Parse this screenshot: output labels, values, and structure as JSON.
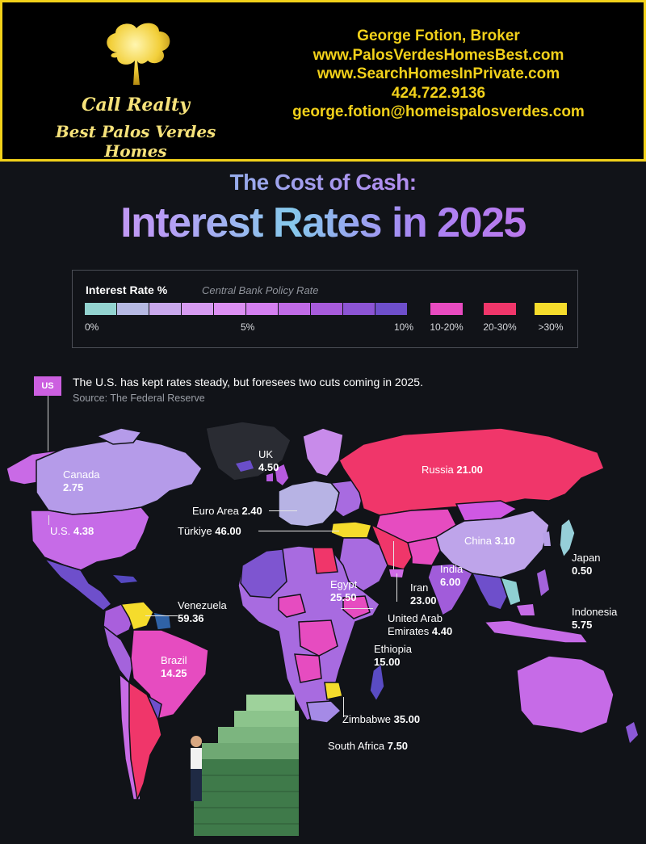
{
  "banner": {
    "brand_line1": "Call Realty",
    "brand_line2": "Best Palos Verdes Homes",
    "contact": [
      "George Fotion, Broker",
      "www.PalosVerdesHomesBest.com",
      "www.SearchHomesInPrivate.com",
      "424.722.9136",
      "george.fotion@homeispalosverdes.com"
    ]
  },
  "titles": {
    "subtitle": "The Cost of Cash:",
    "title": "Interest Rates in 2025"
  },
  "legend": {
    "title": "Interest Rate %",
    "subtitle": "Central Bank Policy Rate",
    "ticks": [
      "0%",
      "5%",
      "10%"
    ],
    "buckets": [
      {
        "label": "10-20%",
        "color": "#e84bc0"
      },
      {
        "label": "20-30%",
        "color": "#f0366a"
      },
      {
        "label": ">30%",
        "color": "#f5dc2c"
      }
    ],
    "scale_colors": [
      "#93d3d0",
      "#b6b9e3",
      "#c9a8ec",
      "#d69af0",
      "#dc8ff2",
      "#d47ff0",
      "#c06be6",
      "#a75bdb",
      "#8c54d4",
      "#6e4fcb",
      "#2f62a6"
    ]
  },
  "note": {
    "tag": "US",
    "text": "The U.S. has kept rates steady, but foresees two cuts coming in 2025.",
    "source": "Source: The Federal Reserve"
  },
  "countries": [
    {
      "name": "Canada",
      "rate": "2.75"
    },
    {
      "name": "U.S.",
      "rate": "4.38"
    },
    {
      "name": "UK",
      "rate": "4.50"
    },
    {
      "name": "Euro Area",
      "rate": "2.40"
    },
    {
      "name": "Türkiye",
      "rate": "46.00"
    },
    {
      "name": "Russia",
      "rate": "21.00"
    },
    {
      "name": "China",
      "rate": "3.10"
    },
    {
      "name": "Japan",
      "rate": "0.50"
    },
    {
      "name": "Egypt",
      "rate": "25.50"
    },
    {
      "name": "Iran",
      "rate": "23.00"
    },
    {
      "name": "India",
      "rate": "6.00"
    },
    {
      "name": "United Arab",
      "name2": "Emirates",
      "rate": "4.40"
    },
    {
      "name": "Indonesia",
      "rate": "5.75"
    },
    {
      "name": "Venezuela",
      "rate": "59.36"
    },
    {
      "name": "Brazil",
      "rate": "14.25"
    },
    {
      "name": "Ethiopia",
      "rate": "15.00"
    },
    {
      "name": "Zimbabwe",
      "rate": "35.00"
    },
    {
      "name": "South Africa",
      "rate": "7.50"
    }
  ],
  "colors": {
    "background": "#111318",
    "banner_border": "#f2d11a",
    "contact_text": "#f2d11a",
    "brand_text": "#f6e27a"
  },
  "icons": [
    "tree-logo-icon",
    "money-stack-icon",
    "businessman-icon"
  ]
}
